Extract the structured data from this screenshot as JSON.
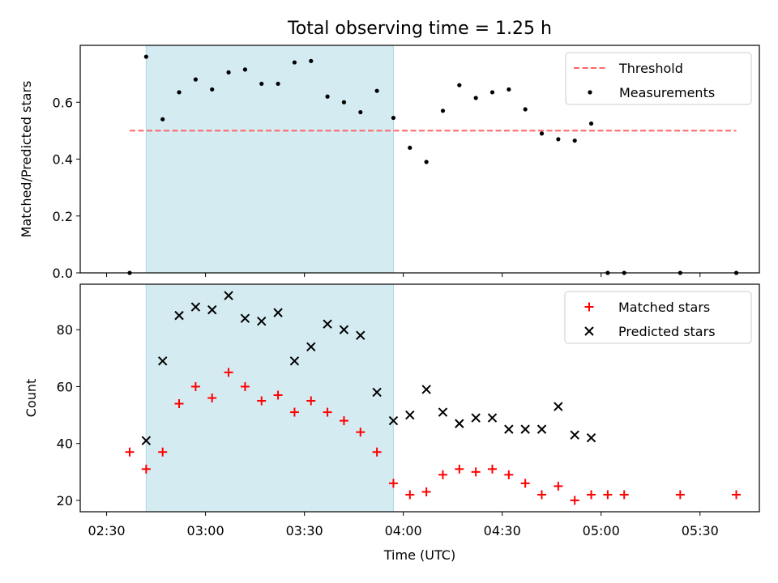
{
  "title": "Total observing time = 1.25 h",
  "colors": {
    "threshold": "#ff6666",
    "measurement": "#000000",
    "matched": "#ff0000",
    "predicted": "#000000",
    "shade": "#add8e6"
  },
  "chart_data": [
    {
      "type": "scatter",
      "panel": "top",
      "xlabel": "",
      "ylabel": "Matched/Predicted stars",
      "x_unit": "minutes after 02:30 UTC",
      "xlim": [
        "02:22",
        "05:48"
      ],
      "ylim": [
        0,
        0.8
      ],
      "yticks": [
        "0.0",
        "0.2",
        "0.4",
        "0.6"
      ],
      "ytick_values": [
        0,
        0.2,
        0.4,
        0.6
      ],
      "shaded_interval": [
        "02:42",
        "03:57"
      ],
      "legend_position": "upper right",
      "series": [
        {
          "name": "Threshold",
          "style": "dashed line",
          "x": [
            "02:37",
            "05:41"
          ],
          "y": [
            0.5,
            0.5
          ]
        },
        {
          "name": "Measurements",
          "style": "dots",
          "x": [
            "02:37",
            "02:42",
            "02:47",
            "02:52",
            "02:57",
            "03:02",
            "03:07",
            "03:12",
            "03:17",
            "03:22",
            "03:27",
            "03:32",
            "03:37",
            "03:42",
            "03:47",
            "03:52",
            "03:57",
            "04:02",
            "04:07",
            "04:12",
            "04:17",
            "04:22",
            "04:27",
            "04:32",
            "04:37",
            "04:42",
            "04:47",
            "04:52",
            "04:57",
            "05:02",
            "05:07",
            "05:24",
            "05:41"
          ],
          "y": [
            0.0,
            0.76,
            0.54,
            0.635,
            0.68,
            0.645,
            0.705,
            0.715,
            0.665,
            0.665,
            0.74,
            0.745,
            0.62,
            0.6,
            0.565,
            0.64,
            0.545,
            0.44,
            0.39,
            0.57,
            0.66,
            0.615,
            0.635,
            0.645,
            0.575,
            0.49,
            0.47,
            0.465,
            0.525,
            0.0,
            0.0,
            0.0,
            0.0
          ]
        }
      ]
    },
    {
      "type": "scatter",
      "panel": "bottom",
      "xlabel": "Time (UTC)",
      "ylabel": "Count",
      "xlim": [
        "02:22",
        "05:48"
      ],
      "ylim": [
        16,
        96
      ],
      "xticks": [
        "02:30",
        "03:00",
        "03:30",
        "04:00",
        "04:30",
        "05:00",
        "05:30"
      ],
      "yticks": [
        "20",
        "40",
        "60",
        "80"
      ],
      "ytick_values": [
        20,
        40,
        60,
        80
      ],
      "shaded_interval": [
        "02:42",
        "03:57"
      ],
      "legend_position": "upper right",
      "series": [
        {
          "name": "Matched stars",
          "marker": "plus",
          "x": [
            "02:37",
            "02:42",
            "02:47",
            "02:52",
            "02:57",
            "03:02",
            "03:07",
            "03:12",
            "03:17",
            "03:22",
            "03:27",
            "03:32",
            "03:37",
            "03:42",
            "03:47",
            "03:52",
            "03:57",
            "04:02",
            "04:07",
            "04:12",
            "04:17",
            "04:22",
            "04:27",
            "04:32",
            "04:37",
            "04:42",
            "04:47",
            "04:52",
            "04:57",
            "05:02",
            "05:07",
            "05:24",
            "05:41"
          ],
          "y": [
            37,
            31,
            37,
            54,
            60,
            56,
            65,
            60,
            55,
            57,
            51,
            55,
            51,
            48,
            44,
            37,
            26,
            22,
            23,
            29,
            31,
            30,
            31,
            29,
            26,
            22,
            25,
            20,
            22,
            22,
            22,
            22,
            22
          ]
        },
        {
          "name": "Predicted stars",
          "marker": "x",
          "x": [
            "02:42",
            "02:47",
            "02:52",
            "02:57",
            "03:02",
            "03:07",
            "03:12",
            "03:17",
            "03:22",
            "03:27",
            "03:32",
            "03:37",
            "03:42",
            "03:47",
            "03:52",
            "03:57",
            "04:02",
            "04:07",
            "04:12",
            "04:17",
            "04:22",
            "04:27",
            "04:32",
            "04:37",
            "04:42",
            "04:47",
            "04:52",
            "04:57"
          ],
          "y": [
            41,
            69,
            85,
            88,
            87,
            92,
            84,
            83,
            86,
            69,
            74,
            82,
            80,
            78,
            58,
            48,
            50,
            59,
            51,
            47,
            49,
            49,
            45,
            45,
            45,
            53,
            43,
            42
          ]
        }
      ]
    }
  ]
}
